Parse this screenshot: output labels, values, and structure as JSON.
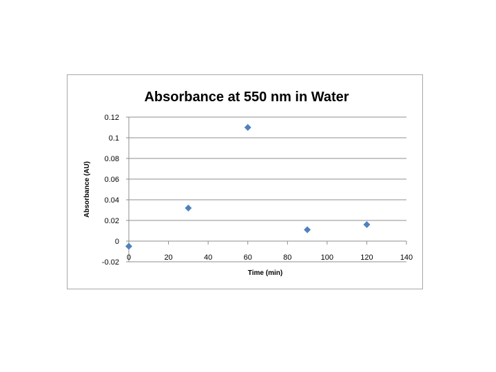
{
  "chart_data": {
    "type": "scatter",
    "title": "Absorbance at 550 nm in Water",
    "xlabel": "Time (min)",
    "ylabel": "Absorbance (AU)",
    "xlim": [
      0,
      140
    ],
    "ylim": [
      -0.02,
      0.12
    ],
    "xticks": [
      "0",
      "20",
      "40",
      "60",
      "80",
      "100",
      "120",
      "140"
    ],
    "yticks": [
      "-0.02",
      "0",
      "0.02",
      "0.04",
      "0.06",
      "0.08",
      "0.1",
      "0.12"
    ],
    "grid": "horizontal",
    "legend": "none",
    "series": [
      {
        "name": "Absorbance",
        "color": "#4f81bd",
        "x": [
          0,
          30,
          60,
          90,
          120
        ],
        "y": [
          -0.005,
          0.032,
          0.11,
          0.011,
          0.016
        ]
      }
    ]
  }
}
